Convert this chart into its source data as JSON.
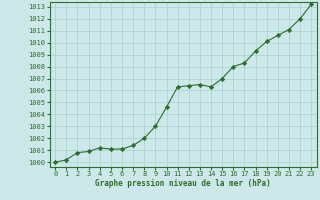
{
  "x": [
    0,
    1,
    2,
    3,
    4,
    5,
    6,
    7,
    8,
    9,
    10,
    11,
    12,
    13,
    14,
    15,
    16,
    17,
    18,
    19,
    20,
    21,
    22,
    23
  ],
  "y": [
    1000.0,
    1000.2,
    1000.8,
    1000.9,
    1001.2,
    1001.1,
    1001.1,
    1001.4,
    1002.0,
    1003.0,
    1004.6,
    1006.3,
    1006.4,
    1006.5,
    1006.3,
    1007.0,
    1008.0,
    1008.3,
    1009.3,
    1010.1,
    1010.6,
    1011.1,
    1012.0,
    1013.2
  ],
  "line_color": "#2d6e2d",
  "marker": "D",
  "marker_size": 2.2,
  "bg_color": "#cce8e8",
  "grid_color": "#afd4d4",
  "xlabel": "Graphe pression niveau de la mer (hPa)",
  "xlabel_color": "#2d6e2d",
  "tick_color": "#2d6e2d",
  "ylim": [
    999.6,
    1013.4
  ],
  "xlim": [
    -0.5,
    23.5
  ],
  "yticks": [
    1000,
    1001,
    1002,
    1003,
    1004,
    1005,
    1006,
    1007,
    1008,
    1009,
    1010,
    1011,
    1012,
    1013
  ],
  "xticks": [
    0,
    1,
    2,
    3,
    4,
    5,
    6,
    7,
    8,
    9,
    10,
    11,
    12,
    13,
    14,
    15,
    16,
    17,
    18,
    19,
    20,
    21,
    22,
    23
  ],
  "tick_fontsize": 5,
  "xlabel_fontsize": 5.5,
  "linewidth": 0.8
}
